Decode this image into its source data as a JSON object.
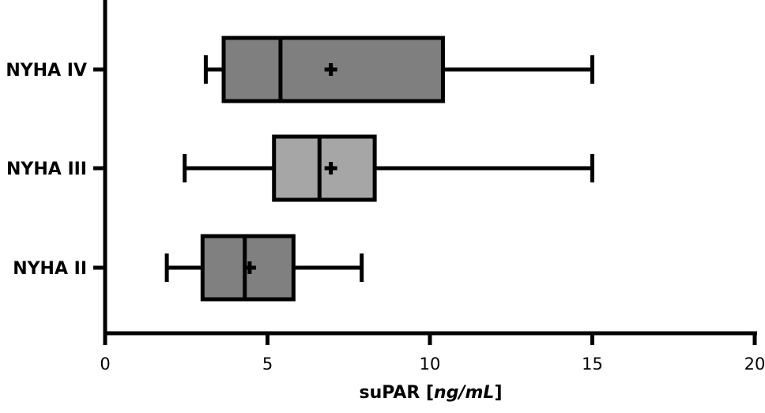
{
  "chart_data": {
    "type": "boxplot",
    "orientation": "horizontal",
    "title": "",
    "xlabel": {
      "prefix": "suPAR [",
      "unit": "ng/mL",
      "suffix": "]"
    },
    "ylabel": "",
    "xlim": [
      0,
      20
    ],
    "xticks": [
      "0",
      "5",
      "10",
      "15",
      "20"
    ],
    "grid": false,
    "categories": [
      "NYHA IV",
      "NYHA III",
      "NYHA II"
    ],
    "boxes": [
      {
        "label": "NYHA IV",
        "min": 3.1,
        "q1": 3.65,
        "median": 5.4,
        "mean": 6.95,
        "q3": 10.4,
        "max": 15.0,
        "color": "#7f7f7f"
      },
      {
        "label": "NYHA III",
        "min": 2.45,
        "q1": 5.2,
        "median": 6.6,
        "mean": 6.95,
        "q3": 8.3,
        "max": 15.0,
        "color": "#a6a6a6"
      },
      {
        "label": "NYHA II",
        "min": 1.9,
        "q1": 3.0,
        "median": 4.3,
        "mean": 4.45,
        "q3": 5.8,
        "max": 7.9,
        "color": "#808080"
      }
    ]
  }
}
